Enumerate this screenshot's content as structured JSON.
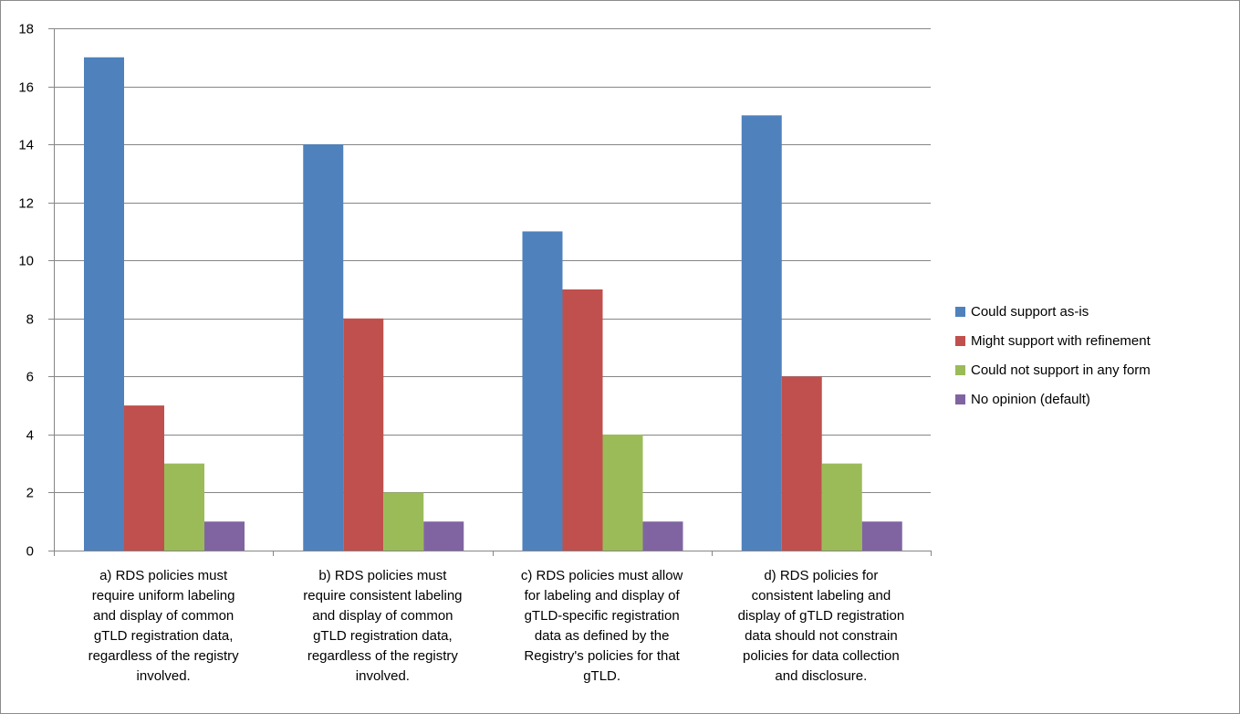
{
  "chart_data": {
    "type": "bar",
    "title": "",
    "xlabel": "",
    "ylabel": "",
    "ylim": [
      0,
      18
    ],
    "yticks": [
      0,
      2,
      4,
      6,
      8,
      10,
      12,
      14,
      16,
      18
    ],
    "grid": true,
    "legend_position": "right",
    "categories": [
      "a) RDS policies must require uniform labeling and display of common gTLD registration data, regardless of the registry involved.",
      "b) RDS policies must require consistent labeling and display of common gTLD registration data, regardless of the registry involved.",
      "c) RDS policies must allow for labeling and display of gTLD-specific registration data as defined by the Registry's policies for that gTLD.",
      "d) RDS policies for consistent labeling and display of gTLD registration data should not constrain policies for data collection and disclosure."
    ],
    "category_lines": [
      [
        "a) RDS policies must",
        "require uniform labeling",
        "and display of common",
        "gTLD registration data,",
        "regardless of the registry",
        "involved."
      ],
      [
        "b) RDS policies must",
        "require consistent labeling",
        "and display of common",
        "gTLD registration data,",
        "regardless of the registry",
        "involved."
      ],
      [
        "c) RDS policies must allow",
        "for labeling and display of",
        "gTLD-specific registration",
        "data as defined by the",
        "Registry's policies for that",
        "gTLD."
      ],
      [
        "d) RDS policies for",
        "consistent labeling and",
        "display of gTLD registration",
        "data should not constrain",
        "policies for data collection",
        "and disclosure."
      ]
    ],
    "series": [
      {
        "name": "Could support as-is",
        "color": "#4f81bd",
        "values": [
          17,
          14,
          11,
          15
        ]
      },
      {
        "name": "Might support with refinement",
        "color": "#c0504d",
        "values": [
          5,
          8,
          9,
          6
        ]
      },
      {
        "name": "Could not support in any form",
        "color": "#9bbb59",
        "values": [
          3,
          2,
          4,
          3
        ]
      },
      {
        "name": "No opinion (default)",
        "color": "#8064a2",
        "values": [
          1,
          1,
          1,
          1
        ]
      }
    ]
  }
}
